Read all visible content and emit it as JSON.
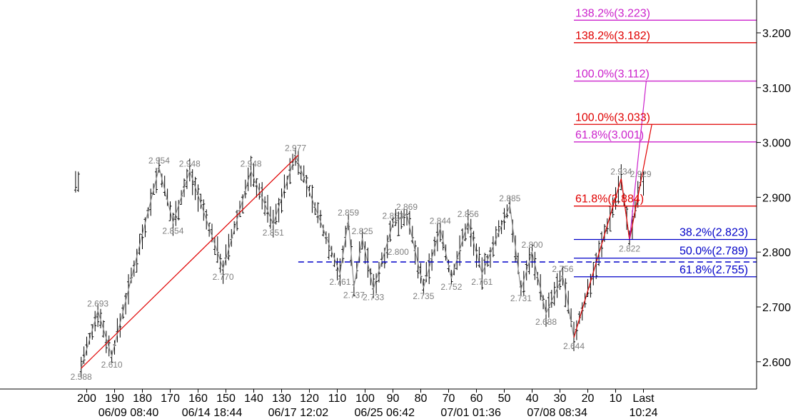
{
  "chart_data": {
    "type": "candlestick",
    "colors": {
      "bars": "#000000",
      "swing_line": "#8c8c8c",
      "swing_label": "#7f7f7f",
      "red": "#e00000",
      "magenta": "#cc22cc",
      "blue": "#0000c8"
    },
    "y_axis": {
      "range": [
        2.55,
        3.25
      ],
      "ticks": [
        "2.600",
        "2.700",
        "2.800",
        "2.900",
        "3.000",
        "3.100",
        "3.200"
      ],
      "tick_values": [
        2.6,
        2.7,
        2.8,
        2.9,
        3.0,
        3.1,
        3.2
      ]
    },
    "x_axis": {
      "range": [
        204,
        -5
      ],
      "ticks": [
        "200",
        "190",
        "180",
        "170",
        "160",
        "150",
        "140",
        "130",
        "120",
        "110",
        "100",
        "90",
        "80",
        "70",
        "60",
        "50",
        "40",
        "30",
        "20",
        "10",
        "Last"
      ],
      "tick_values": [
        200,
        190,
        180,
        170,
        160,
        150,
        140,
        130,
        120,
        110,
        100,
        90,
        80,
        70,
        60,
        50,
        40,
        30,
        20,
        10,
        0
      ],
      "dates": [
        "06/09 08:40",
        "06/14 18:44",
        "06/17 12:02",
        "06/25 06:42",
        "07/01 01:36",
        "07/08 08:34",
        "10:24"
      ],
      "date_positions": [
        185,
        155,
        124,
        93,
        62,
        31,
        0
      ]
    },
    "swings": [
      {
        "x": 202,
        "y": 2.588,
        "label": "2.588",
        "pos": "below"
      },
      {
        "x": 196,
        "y": 2.693,
        "label": "2.693",
        "pos": "above"
      },
      {
        "x": 191,
        "y": 2.61,
        "label": "2.610",
        "pos": "below"
      },
      {
        "x": 174,
        "y": 2.954,
        "label": "2.954",
        "pos": "above"
      },
      {
        "x": 169,
        "y": 2.854,
        "label": "2.854",
        "pos": "below"
      },
      {
        "x": 163,
        "y": 2.948,
        "label": "2.948",
        "pos": "above"
      },
      {
        "x": 151,
        "y": 2.77,
        "label": "2.770",
        "pos": "below"
      },
      {
        "x": 141,
        "y": 2.948,
        "label": "2.948",
        "pos": "above"
      },
      {
        "x": 133,
        "y": 2.851,
        "label": "2.851",
        "pos": "below"
      },
      {
        "x": 125,
        "y": 2.977,
        "label": "2.977",
        "pos": "above"
      },
      {
        "x": 109,
        "y": 2.761,
        "label": "2.761",
        "pos": "below"
      },
      {
        "x": 106,
        "y": 2.859,
        "label": "2.859",
        "pos": "above"
      },
      {
        "x": 104,
        "y": 2.737,
        "label": "2.737",
        "pos": "below"
      },
      {
        "x": 101,
        "y": 2.825,
        "label": "2.825",
        "pos": "above"
      },
      {
        "x": 97,
        "y": 2.733,
        "label": "2.733",
        "pos": "below"
      },
      {
        "x": 93,
        "y": 2.8,
        "label": "2.800",
        "pos": "right"
      },
      {
        "x": 90,
        "y": 2.853,
        "label": "2.853",
        "pos": "above"
      },
      {
        "x": 85,
        "y": 2.869,
        "label": "2.869",
        "pos": "above"
      },
      {
        "x": 79,
        "y": 2.735,
        "label": "2.735",
        "pos": "below"
      },
      {
        "x": 73,
        "y": 2.844,
        "label": "2.844",
        "pos": "above"
      },
      {
        "x": 69,
        "y": 2.752,
        "label": "2.752",
        "pos": "below"
      },
      {
        "x": 63,
        "y": 2.856,
        "label": "2.856",
        "pos": "above"
      },
      {
        "x": 58,
        "y": 2.761,
        "label": "2.761",
        "pos": "below"
      },
      {
        "x": 48,
        "y": 2.885,
        "label": "2.885",
        "pos": "above"
      },
      {
        "x": 44,
        "y": 2.731,
        "label": "2.731",
        "pos": "below"
      },
      {
        "x": 40,
        "y": 2.8,
        "label": "2.800",
        "pos": "above"
      },
      {
        "x": 35,
        "y": 2.688,
        "label": "2.688",
        "pos": "below"
      },
      {
        "x": 29,
        "y": 2.756,
        "label": "2.756",
        "pos": "above"
      },
      {
        "x": 25,
        "y": 2.644,
        "label": "2.644",
        "pos": "below"
      },
      {
        "x": 8,
        "y": 2.934,
        "label": "2.934",
        "pos": "above"
      },
      {
        "x": 5,
        "y": 2.822,
        "label": "2.822",
        "pos": "below"
      },
      {
        "x": 1,
        "y": 2.929,
        "label": "2.929",
        "pos": "above"
      }
    ],
    "trend_lines": [
      {
        "color": "red",
        "points": [
          [
            202,
            2.588
          ],
          [
            124,
            2.977
          ]
        ]
      },
      {
        "color": "red",
        "points": [
          [
            25,
            2.644
          ],
          [
            8,
            2.934
          ],
          [
            5,
            2.822
          ],
          [
            -3,
            3.033
          ]
        ]
      },
      {
        "color": "magenta",
        "points": [
          [
            5,
            2.822
          ],
          [
            -1,
            3.112
          ]
        ]
      }
    ],
    "fib_levels": [
      {
        "label": "138.2%(3.223)",
        "value": 3.223,
        "color": "magenta",
        "x_start": 5
      },
      {
        "label": "138.2%(3.182)",
        "value": 3.182,
        "color": "red",
        "x_start": 25
      },
      {
        "label": "100.0%(3.112)",
        "value": 3.112,
        "color": "magenta",
        "x_start": 5
      },
      {
        "label": "100.0%(3.033)",
        "value": 3.033,
        "color": "red",
        "x_start": 25
      },
      {
        "label": "61.8%(3.001)",
        "value": 3.001,
        "color": "magenta",
        "x_start": 5
      },
      {
        "label": "61.8%(2.884)",
        "value": 2.884,
        "color": "red",
        "x_start": 25
      },
      {
        "label": "38.2%(2.823)",
        "value": 2.823,
        "color": "blue",
        "x_start": 25
      },
      {
        "label": "50.0%(2.789)",
        "value": 2.789,
        "color": "blue",
        "x_start": 25
      },
      {
        "label": "61.8%(2.755)",
        "value": 2.755,
        "color": "blue",
        "x_start": 25
      }
    ],
    "dashed_level": {
      "value": 2.782,
      "x_start": 124,
      "color": "blue"
    },
    "grid": false
  }
}
